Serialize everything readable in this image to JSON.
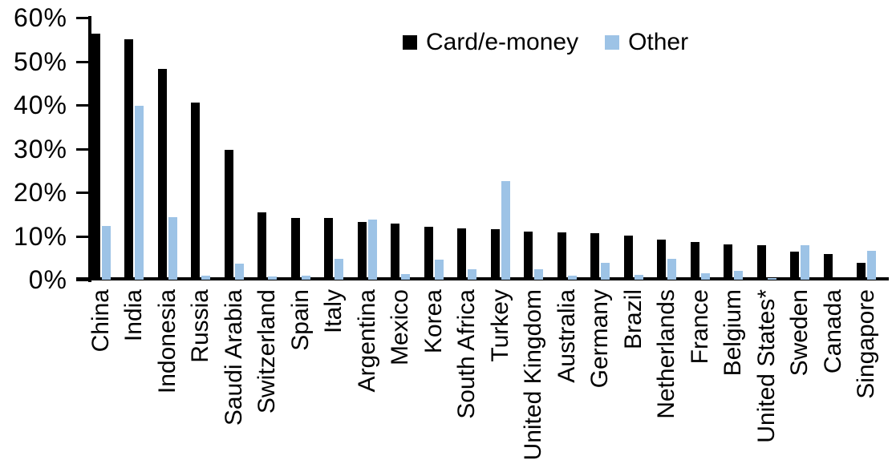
{
  "chart_data": {
    "type": "bar",
    "title": "",
    "xlabel": "",
    "ylabel": "",
    "ylim": [
      0,
      60
    ],
    "y_tick_labels": [
      "60%",
      "50%",
      "40%",
      "30%",
      "20%",
      "10%",
      "0%"
    ],
    "grid": false,
    "legend_position": "top-center",
    "categories": [
      "China",
      "India",
      "Indonesia",
      "Russia",
      "Saudi Arabia",
      "Switzerland",
      "Spain",
      "Italy",
      "Argentina",
      "Mexico",
      "Korea",
      "South Africa",
      "Turkey",
      "United Kingdom",
      "Australia",
      "Germany",
      "Brazil",
      "Netherlands",
      "France",
      "Belgium",
      "United States*",
      "Sweden",
      "Canada",
      "Singapore"
    ],
    "series": [
      {
        "name": "Card/e-money",
        "color": "#000000",
        "values": [
          56.3,
          55.0,
          48.3,
          40.5,
          29.8,
          15.5,
          14.2,
          14.1,
          13.3,
          12.9,
          12.2,
          11.7,
          11.6,
          11.1,
          10.8,
          10.6,
          10.0,
          9.2,
          8.6,
          8.1,
          7.8,
          6.5,
          5.9,
          3.9
        ]
      },
      {
        "name": "Other",
        "color": "#9DC3E6",
        "values": [
          12.3,
          39.8,
          14.4,
          1.0,
          3.7,
          0.7,
          0.9,
          4.7,
          13.8,
          1.2,
          4.5,
          2.3,
          22.5,
          2.3,
          0.9,
          3.8,
          1.1,
          4.8,
          1.5,
          2.0,
          0.4,
          7.9,
          0.0,
          6.6
        ]
      }
    ]
  }
}
